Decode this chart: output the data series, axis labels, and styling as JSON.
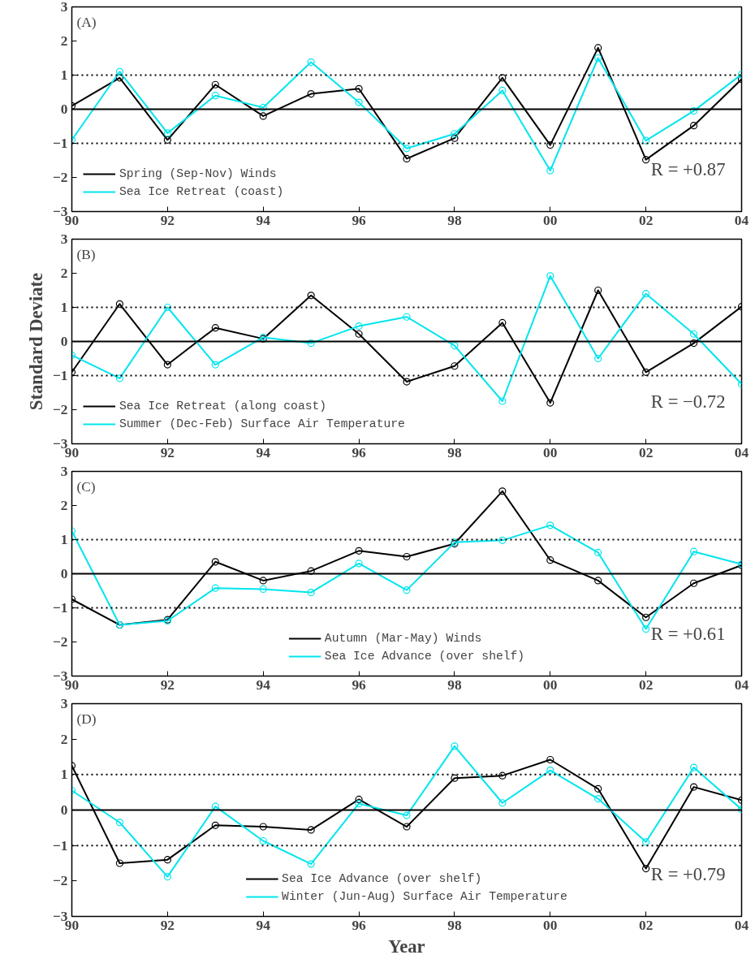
{
  "chart_data": [
    {
      "type": "line",
      "annotations": [
        "(A)",
        "R = +0.87"
      ],
      "x": [
        1990,
        1991,
        1992,
        1993,
        1994,
        1995,
        1996,
        1997,
        1998,
        1999,
        2000,
        2001,
        2002,
        2003,
        2004
      ],
      "series": [
        {
          "name": "Spring (Sep-Nov) Winds",
          "color": "#000000",
          "values": [
            0.1,
            0.92,
            -0.9,
            0.72,
            -0.2,
            0.45,
            0.6,
            -1.45,
            -0.85,
            0.92,
            -1.05,
            1.8,
            -1.48,
            -0.48,
            0.88
          ]
        },
        {
          "name": "Sea Ice Retreat (coast)",
          "color": "#00e5ee",
          "values": [
            -0.9,
            1.1,
            -0.7,
            0.4,
            0.05,
            1.38,
            0.2,
            -1.15,
            -0.72,
            0.55,
            -1.8,
            1.5,
            -0.92,
            -0.05,
            1.02
          ]
        }
      ],
      "xlim": [
        1990,
        2004
      ],
      "xticks": [
        {
          "value": 1990,
          "label": "90"
        },
        {
          "value": 1992,
          "label": "92"
        },
        {
          "value": 1994,
          "label": "94"
        },
        {
          "value": 1996,
          "label": "96"
        },
        {
          "value": 1998,
          "label": "98"
        },
        {
          "value": 2000,
          "label": "00"
        },
        {
          "value": 2002,
          "label": "02"
        },
        {
          "value": 2004,
          "label": "04"
        }
      ],
      "ylim": [
        -3,
        3
      ],
      "yticks": [
        -3,
        -2,
        -1,
        0,
        1,
        2,
        3
      ],
      "ref_lines": [
        {
          "axis": "y",
          "value": 0,
          "line_style": "solid"
        },
        {
          "axis": "y",
          "value": 1,
          "line_style": "dotted"
        },
        {
          "axis": "y",
          "value": -1,
          "line_style": "dotted"
        }
      ],
      "legend": "bottom left",
      "marker": "circle",
      "grid": false
    },
    {
      "type": "line",
      "ylabel": "Standard Deviate",
      "annotations": [
        "(B)",
        "R = −0.72"
      ],
      "x": [
        1990,
        1991,
        1992,
        1993,
        1994,
        1995,
        1996,
        1997,
        1998,
        1999,
        2000,
        2001,
        2002,
        2003,
        2004
      ],
      "series": [
        {
          "name": "Sea Ice Retreat (along coast)",
          "color": "#000000",
          "values": [
            -0.9,
            1.1,
            -0.68,
            0.4,
            0.08,
            1.35,
            0.22,
            -1.18,
            -0.72,
            0.55,
            -1.8,
            1.5,
            -0.9,
            -0.05,
            1.02
          ]
        },
        {
          "name": "Summer (Dec-Feb) Surface Air Temperature",
          "color": "#00e5ee",
          "values": [
            -0.4,
            -1.08,
            1.0,
            -0.68,
            0.12,
            -0.05,
            0.45,
            0.72,
            -0.12,
            -1.75,
            1.92,
            -0.5,
            1.4,
            0.22,
            -1.25
          ]
        }
      ],
      "xlim": [
        1990,
        2004
      ],
      "xticks": [
        {
          "value": 1990,
          "label": "90"
        },
        {
          "value": 1992,
          "label": "92"
        },
        {
          "value": 1994,
          "label": "94"
        },
        {
          "value": 1996,
          "label": "96"
        },
        {
          "value": 1998,
          "label": "98"
        },
        {
          "value": 2000,
          "label": "00"
        },
        {
          "value": 2002,
          "label": "02"
        },
        {
          "value": 2004,
          "label": "04"
        }
      ],
      "ylim": [
        -3,
        3
      ],
      "yticks": [
        -3,
        -2,
        -1,
        0,
        1,
        2,
        3
      ],
      "ref_lines": [
        {
          "axis": "y",
          "value": 0,
          "line_style": "solid"
        },
        {
          "axis": "y",
          "value": 1,
          "line_style": "dotted"
        },
        {
          "axis": "y",
          "value": -1,
          "line_style": "dotted"
        }
      ],
      "legend": "bottom left",
      "marker": "circle",
      "grid": false
    },
    {
      "type": "line",
      "annotations": [
        "(C)",
        "R = +0.61"
      ],
      "x": [
        1990,
        1991,
        1992,
        1993,
        1994,
        1995,
        1996,
        1997,
        1998,
        1999,
        2000,
        2001,
        2002,
        2003,
        2004
      ],
      "series": [
        {
          "name": "Autumn (Mar-May) Winds",
          "color": "#000000",
          "values": [
            -0.75,
            -1.5,
            -1.35,
            0.35,
            -0.2,
            0.08,
            0.67,
            0.5,
            0.88,
            2.42,
            0.4,
            -0.2,
            -1.28,
            -0.28,
            0.25
          ]
        },
        {
          "name": "Sea Ice Advance (over shelf)",
          "color": "#00e5ee",
          "values": [
            1.25,
            -1.5,
            -1.38,
            -0.42,
            -0.45,
            -0.55,
            0.3,
            -0.48,
            0.92,
            0.98,
            1.42,
            0.62,
            -1.62,
            0.65,
            0.28
          ]
        }
      ],
      "xlim": [
        1990,
        2004
      ],
      "xticks": [
        {
          "value": 1990,
          "label": "90"
        },
        {
          "value": 1992,
          "label": "92"
        },
        {
          "value": 1994,
          "label": "94"
        },
        {
          "value": 1996,
          "label": "96"
        },
        {
          "value": 1998,
          "label": "98"
        },
        {
          "value": 2000,
          "label": "00"
        },
        {
          "value": 2002,
          "label": "02"
        },
        {
          "value": 2004,
          "label": "04"
        }
      ],
      "ylim": [
        -3,
        3
      ],
      "yticks": [
        -3,
        -2,
        -1,
        0,
        1,
        2,
        3
      ],
      "ref_lines": [
        {
          "axis": "y",
          "value": 0,
          "line_style": "solid"
        },
        {
          "axis": "y",
          "value": 1,
          "line_style": "dotted"
        },
        {
          "axis": "y",
          "value": -1,
          "line_style": "dotted"
        }
      ],
      "legend": "bottom",
      "marker": "circle",
      "grid": false
    },
    {
      "type": "line",
      "xlabel": "Year",
      "annotations": [
        "(D)",
        "R = +0.79"
      ],
      "x": [
        1990,
        1991,
        1992,
        1993,
        1994,
        1995,
        1996,
        1997,
        1998,
        1999,
        2000,
        2001,
        2002,
        2003,
        2004
      ],
      "series": [
        {
          "name": "Sea Ice Advance (over shelf)",
          "color": "#000000",
          "values": [
            1.25,
            -1.5,
            -1.4,
            -0.43,
            -0.47,
            -0.56,
            0.3,
            -0.47,
            0.9,
            0.97,
            1.42,
            0.6,
            -1.65,
            0.65,
            0.28
          ]
        },
        {
          "name": "Winter (Jun-Aug) Surface Air Temperature",
          "color": "#00e5ee",
          "values": [
            0.55,
            -0.35,
            -1.88,
            0.1,
            -0.87,
            -1.52,
            0.18,
            -0.15,
            1.8,
            0.2,
            1.12,
            0.32,
            -0.9,
            1.2,
            0.02
          ]
        }
      ],
      "xlim": [
        1990,
        2004
      ],
      "xticks": [
        {
          "value": 1990,
          "label": "90"
        },
        {
          "value": 1992,
          "label": "92"
        },
        {
          "value": 1994,
          "label": "94"
        },
        {
          "value": 1996,
          "label": "96"
        },
        {
          "value": 1998,
          "label": "98"
        },
        {
          "value": 2000,
          "label": "00"
        },
        {
          "value": 2002,
          "label": "02"
        },
        {
          "value": 2004,
          "label": "04"
        }
      ],
      "ylim": [
        -3,
        3
      ],
      "yticks": [
        -3,
        -2,
        -1,
        0,
        1,
        2,
        3
      ],
      "ref_lines": [
        {
          "axis": "y",
          "value": 0,
          "line_style": "solid"
        },
        {
          "axis": "y",
          "value": 1,
          "line_style": "dotted"
        },
        {
          "axis": "y",
          "value": -1,
          "line_style": "dotted"
        }
      ],
      "legend": "bottom",
      "marker": "circle",
      "grid": false
    }
  ]
}
